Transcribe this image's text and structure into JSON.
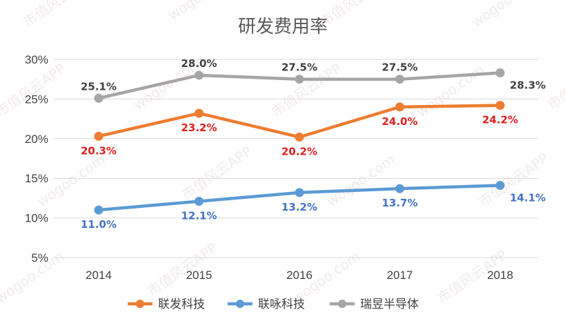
{
  "chart_data": {
    "type": "line",
    "title": "研发费用率",
    "categories": [
      "2014",
      "2015",
      "2016",
      "2017",
      "2018"
    ],
    "ylim": [
      5,
      30
    ],
    "yticks": [
      5,
      10,
      15,
      20,
      25,
      30
    ],
    "ytick_labels": [
      "5%",
      "10%",
      "15%",
      "20%",
      "25%",
      "30%"
    ],
    "grid": true,
    "legend_position": "bottom",
    "series": [
      {
        "name": "联发科技",
        "color": "#ed7d31",
        "label_color": "#e02020",
        "values": [
          20.3,
          23.2,
          20.2,
          24.0,
          24.2
        ],
        "labels": [
          "20.3%",
          "23.2%",
          "20.2%",
          "24.0%",
          "24.2%"
        ],
        "label_side": [
          "below",
          "below",
          "below",
          "below",
          "below"
        ]
      },
      {
        "name": "联咏科技",
        "color": "#5b9bd5",
        "label_color": "#4472c4",
        "values": [
          11.0,
          12.1,
          13.2,
          13.7,
          14.1
        ],
        "labels": [
          "11.0%",
          "12.1%",
          "13.2%",
          "13.7%",
          "14.1%"
        ],
        "label_side": [
          "below",
          "below",
          "below",
          "below",
          "right"
        ]
      },
      {
        "name": "瑞昱半导体",
        "color": "#a5a5a5",
        "label_color": "#404040",
        "values": [
          25.1,
          28.0,
          27.5,
          27.5,
          28.3
        ],
        "labels": [
          "25.1%",
          "28.0%",
          "27.5%",
          "27.5%",
          "28.3%"
        ],
        "label_side": [
          "above",
          "above",
          "above",
          "above",
          "right"
        ]
      }
    ]
  },
  "watermark": {
    "text_cn": "市值风云APP",
    "text_url": "wogoo.com"
  }
}
